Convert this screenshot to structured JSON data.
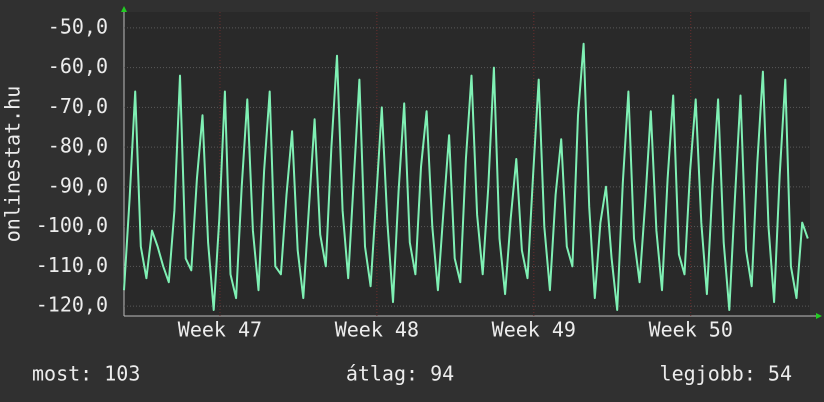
{
  "chart_data": {
    "type": "line",
    "ylabel": "onlinestat.hu",
    "color": "#7ff0b4",
    "grid": true,
    "x": [
      0,
      0.25,
      0.5,
      0.75,
      1,
      1.25,
      1.5,
      1.75,
      2,
      2.25,
      2.5,
      2.75,
      3,
      3.25,
      3.5,
      3.75,
      4,
      4.25,
      4.5,
      4.75,
      5,
      5.25,
      5.5,
      5.75,
      6,
      6.25,
      6.5,
      6.75,
      7,
      7.25,
      7.5,
      7.75,
      8,
      8.25,
      8.5,
      8.75,
      9,
      9.25,
      9.5,
      9.75,
      10,
      10.25,
      10.5,
      10.75,
      11,
      11.25,
      11.5,
      11.75,
      12,
      12.25,
      12.5,
      12.75,
      13,
      13.25,
      13.5,
      13.75,
      14,
      14.25,
      14.5,
      14.75,
      15,
      15.25,
      15.5,
      15.75,
      16,
      16.25,
      16.5,
      16.75,
      17,
      17.25,
      17.5,
      17.75,
      18,
      18.25,
      18.5,
      18.75,
      19,
      19.25,
      19.5,
      19.75,
      20,
      20.25,
      20.5,
      20.75,
      21,
      21.25,
      21.5,
      21.75,
      22,
      22.25,
      22.5,
      22.75,
      23,
      23.25,
      23.5,
      23.75,
      24,
      24.25,
      24.5,
      24.75,
      25,
      25.25,
      25.5,
      25.75,
      26,
      26.25,
      26.5,
      26.75,
      27,
      27.25,
      27.5,
      27.75,
      28,
      28.25,
      28.5,
      28.75,
      29,
      29.25,
      29.5,
      29.75,
      30,
      30.25,
      30.5
    ],
    "values": [
      -116,
      -93,
      -66,
      -105,
      -113,
      -101,
      -105,
      -110,
      -114,
      -96,
      -62,
      -108,
      -111,
      -88,
      -72,
      -104,
      -121,
      -98,
      -66,
      -112,
      -118,
      -90,
      -68,
      -101,
      -116,
      -86,
      -66,
      -110,
      -112,
      -92,
      -76,
      -106,
      -118,
      -95,
      -73,
      -102,
      -110,
      -80,
      -57,
      -96,
      -113,
      -88,
      -63,
      -105,
      -115,
      -93,
      -70,
      -99,
      -119,
      -91,
      -69,
      -104,
      -112,
      -85,
      -71,
      -100,
      -116,
      -96,
      -77,
      -108,
      -114,
      -83,
      -62,
      -97,
      -112,
      -90,
      -60,
      -103,
      -117,
      -98,
      -83,
      -106,
      -113,
      -87,
      -63,
      -100,
      -116,
      -92,
      -78,
      -105,
      -110,
      -72,
      -54,
      -95,
      -118,
      -99,
      -90,
      -108,
      -121,
      -89,
      -66,
      -103,
      -114,
      -94,
      -71,
      -101,
      -116,
      -88,
      -67,
      -107,
      -112,
      -86,
      -68,
      -99,
      -117,
      -90,
      -68,
      -104,
      -121,
      -93,
      -67,
      -106,
      -115,
      -84,
      -61,
      -100,
      -119,
      -87,
      -63,
      -110,
      -118,
      -99,
      -103
    ],
    "xlim": [
      0,
      30.6
    ],
    "xticks": [
      {
        "value": 4.28,
        "label": "Week 47"
      },
      {
        "value": 11.28,
        "label": "Week 48"
      },
      {
        "value": 18.28,
        "label": "Week 49"
      },
      {
        "value": 25.28,
        "label": "Week 50"
      }
    ],
    "ylim": [
      -122.5,
      -46
    ],
    "yticks": [
      {
        "value": -50,
        "label": "-50,0"
      },
      {
        "value": -60,
        "label": "-60,0"
      },
      {
        "value": -70,
        "label": "-70,0"
      },
      {
        "value": -80,
        "label": "-80,0"
      },
      {
        "value": -90,
        "label": "-90,0"
      },
      {
        "value": -100,
        "label": "-100,0"
      },
      {
        "value": -110,
        "label": "-110,0"
      },
      {
        "value": -120,
        "label": "-120,0"
      }
    ],
    "footer": [
      "most: 103",
      "átlag: 94",
      "legjobb: 54"
    ]
  }
}
